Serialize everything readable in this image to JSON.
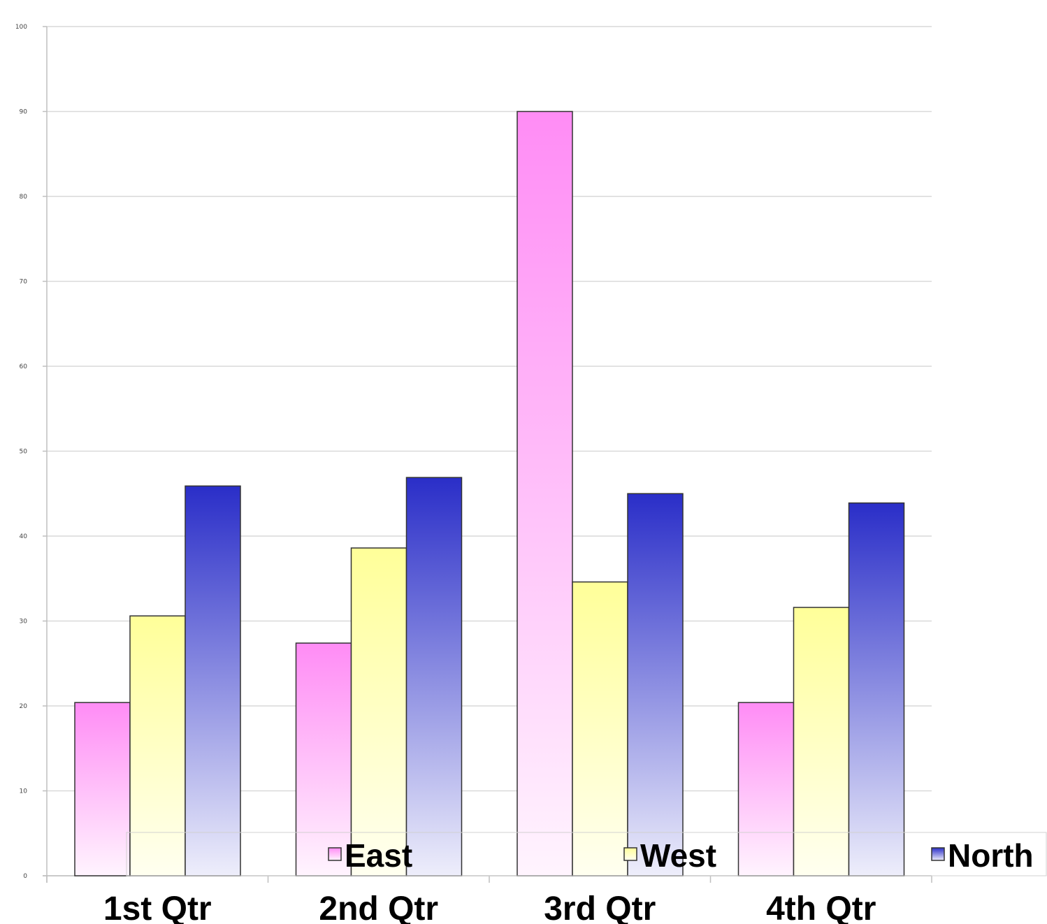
{
  "chart_data": {
    "type": "bar",
    "title": "",
    "xlabel": "",
    "ylabel": "",
    "categories": [
      "1st Qtr",
      "2nd Qtr",
      "3rd Qtr",
      "4th Qtr"
    ],
    "series": [
      {
        "name": "East",
        "values": [
          20.4,
          27.4,
          90,
          20.4
        ],
        "color": "#ff8cf5",
        "color_light": "#fff4fe"
      },
      {
        "name": "West",
        "values": [
          30.6,
          38.6,
          34.6,
          31.6
        ],
        "color": "#ffff99",
        "color_light": "#fffff0"
      },
      {
        "name": "North",
        "values": [
          45.9,
          46.9,
          45,
          43.9
        ],
        "color": "#2a2ec8",
        "color_light": "#eeeefb"
      }
    ],
    "ylim": [
      0,
      100
    ],
    "yticks": [
      0,
      10,
      20,
      30,
      40,
      50,
      60,
      70,
      80,
      90,
      100
    ],
    "grid": true,
    "legend": {
      "position": "bottom",
      "orientation": "horizontal"
    }
  }
}
